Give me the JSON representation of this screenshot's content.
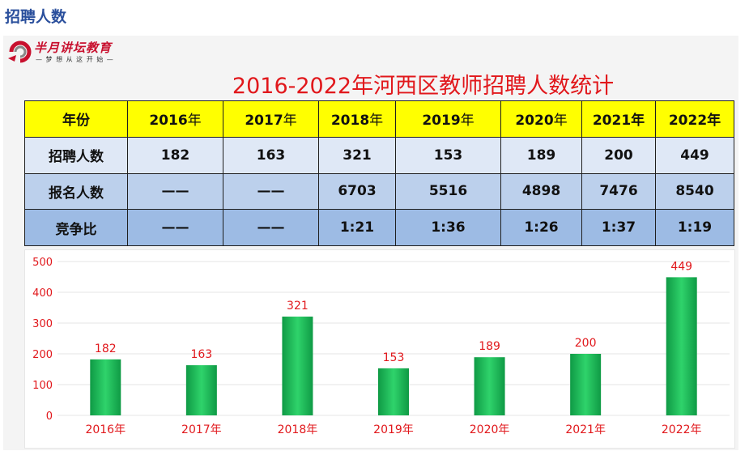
{
  "heading": "招聘人数",
  "logo": {
    "brand": "半月讲坛教育",
    "slogan": "— 梦 想 从 这 开 始 —",
    "icon": "logo-swirl-icon"
  },
  "title": "2016-2022年河西区教师招聘人数统计",
  "table": {
    "headers": [
      {
        "num": "",
        "suffix": "年份"
      },
      {
        "num": "2016",
        "suffix": "年"
      },
      {
        "num": "2017",
        "suffix": "年"
      },
      {
        "num": "2018",
        "suffix": "年"
      },
      {
        "num": "2019",
        "suffix": "年"
      },
      {
        "num": "2020",
        "suffix": "年"
      },
      {
        "num": "2021年",
        "suffix": ""
      },
      {
        "num": "2022年",
        "suffix": ""
      }
    ],
    "rows": [
      [
        "招聘人数",
        "182",
        "163",
        "321",
        "153",
        "189",
        "200",
        "449"
      ],
      [
        "报名人数",
        "——",
        "——",
        "6703",
        "5516",
        "4898",
        "7476",
        "8540"
      ],
      [
        "竞争比",
        "——",
        "——",
        "1:21",
        "1:36",
        "1:26",
        "1:37",
        "1:19"
      ]
    ]
  },
  "chart_data": {
    "type": "bar",
    "categories": [
      "2016年",
      "2017年",
      "2018年",
      "2019年",
      "2020年",
      "2021年",
      "2022年"
    ],
    "values": [
      182,
      163,
      321,
      153,
      189,
      200,
      449
    ],
    "yticks": [
      "0",
      "100",
      "200",
      "300",
      "400",
      "500"
    ],
    "ylim": [
      0,
      500
    ],
    "grid": true,
    "legend": "none",
    "colors": {
      "bar_dark": "#0f9a45",
      "bar_light": "#2fd36b",
      "text": "#e1181c",
      "grid": "#e6e6e6"
    }
  }
}
